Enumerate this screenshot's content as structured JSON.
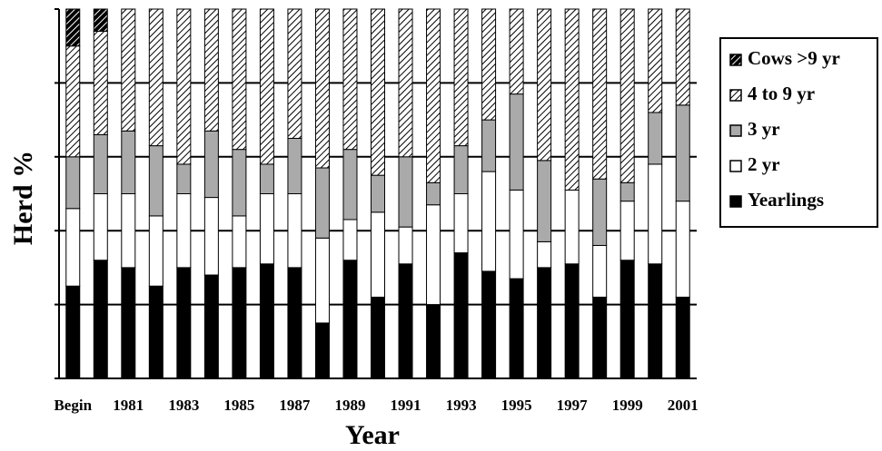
{
  "chart_data": {
    "type": "stacked-bar",
    "x_label": "Year",
    "y_label": "Herd %",
    "categories": [
      "Begin",
      null,
      "1981",
      null,
      "1983",
      null,
      "1985",
      null,
      "1987",
      null,
      "1989",
      null,
      "1991",
      null,
      "1993",
      null,
      "1995",
      null,
      "1997",
      null,
      "1999",
      null,
      "2001"
    ],
    "series": [
      {
        "name": "Yearlings",
        "color": "#000000",
        "hatch": false,
        "values": [
          25,
          32,
          30,
          25,
          30,
          28,
          30,
          31,
          30,
          15,
          32,
          22,
          31,
          20,
          34,
          29,
          27,
          30,
          31,
          22,
          32,
          31,
          22
        ]
      },
      {
        "name": "2 yr",
        "color": "#ffffff",
        "hatch": false,
        "values": [
          21,
          18,
          20,
          19,
          20,
          21,
          14,
          19,
          20,
          23,
          11,
          23,
          10,
          27,
          16,
          27,
          24,
          7,
          20,
          14,
          16,
          27,
          26
        ]
      },
      {
        "name": "3 yr",
        "color": "#aaaaaa",
        "hatch": false,
        "values": [
          14,
          16,
          17,
          19,
          8,
          18,
          18,
          8,
          15,
          19,
          19,
          10,
          19,
          6,
          13,
          14,
          26,
          22,
          0,
          18,
          5,
          14,
          26
        ]
      },
      {
        "name": "4 to 9 yr",
        "color": "#ffffff",
        "hatch": true,
        "values": [
          30,
          28,
          33,
          37,
          42,
          33,
          38,
          42,
          35,
          43,
          38,
          45,
          40,
          47,
          37,
          30,
          23,
          41,
          49,
          46,
          47,
          28,
          26
        ]
      },
      {
        "name": "Cows >9 yr",
        "color": "#000000",
        "hatch": true,
        "values": [
          10,
          6,
          0,
          0,
          0,
          0,
          0,
          0,
          0,
          0,
          0,
          0,
          0,
          0,
          0,
          0,
          0,
          0,
          0,
          0,
          0,
          0,
          0
        ]
      }
    ],
    "ylim": [
      0,
      100
    ],
    "yticks": [
      0,
      20,
      40,
      60,
      80,
      100
    ],
    "grid": true,
    "legend": "right"
  }
}
